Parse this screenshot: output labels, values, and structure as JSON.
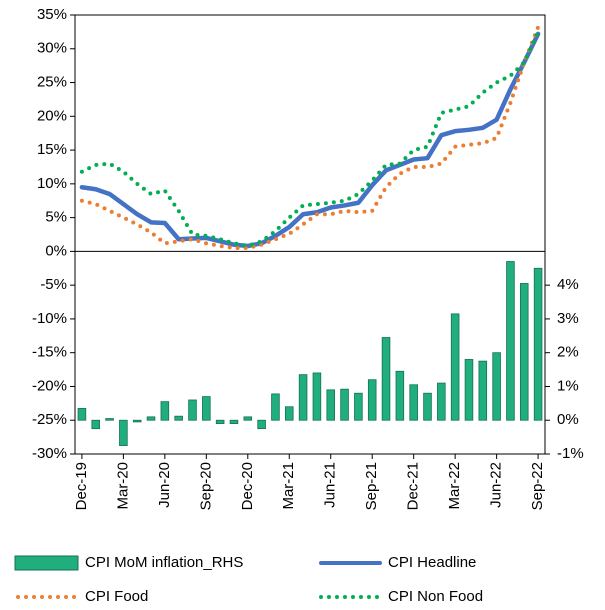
{
  "chart_data": {
    "type": "combo",
    "categories": [
      "Dec-19",
      null,
      null,
      "Mar-20",
      null,
      null,
      "Jun-20",
      null,
      null,
      "Sep-20",
      null,
      null,
      "Dec-20",
      null,
      null,
      "Mar-21",
      null,
      null,
      "Jun-21",
      null,
      null,
      "Sep-21",
      null,
      null,
      "Dec-21",
      null,
      null,
      "Mar-22",
      null,
      null,
      "Jun-22",
      null,
      null,
      "Sep-22"
    ],
    "ylim": [
      -30,
      35
    ],
    "yticks": [
      {
        "value": 35,
        "label": "35%"
      },
      {
        "value": 30,
        "label": "30%"
      },
      {
        "value": 25,
        "label": "25%"
      },
      {
        "value": 20,
        "label": "20%"
      },
      {
        "value": 15,
        "label": "15%"
      },
      {
        "value": 10,
        "label": "10%"
      },
      {
        "value": 5,
        "label": "5%"
      },
      {
        "value": 0,
        "label": "0%"
      },
      {
        "value": -5,
        "label": "-5%"
      },
      {
        "value": -10,
        "label": "-10%"
      },
      {
        "value": -15,
        "label": "-15%"
      },
      {
        "value": -20,
        "label": "-20%"
      },
      {
        "value": -25,
        "label": "-25%"
      },
      {
        "value": -30,
        "label": "-30%"
      }
    ],
    "y2lim": [
      -1,
      12
    ],
    "y2ticks": [
      {
        "value": 4,
        "label": "4%"
      },
      {
        "value": 3,
        "label": "3%"
      },
      {
        "value": 2,
        "label": "2%"
      },
      {
        "value": 1,
        "label": "1%"
      },
      {
        "value": 0,
        "label": "0%"
      },
      {
        "value": -1,
        "label": "-1%"
      }
    ],
    "grid": false,
    "series": [
      {
        "name": "CPI MoM inflation_RHS",
        "type": "bar",
        "axis": "y2",
        "color": "#1fae7c",
        "values": [
          0.35,
          -0.25,
          0.05,
          -0.75,
          -0.05,
          0.1,
          0.55,
          0.12,
          0.6,
          0.7,
          -0.1,
          -0.1,
          0.1,
          -0.25,
          0.78,
          0.4,
          1.35,
          1.4,
          0.9,
          0.92,
          0.8,
          1.2,
          2.45,
          1.45,
          1.05,
          0.8,
          1.1,
          3.15,
          1.8,
          1.75,
          2.0,
          4.7,
          4.05,
          4.5
        ]
      },
      {
        "name": "CPI Headline",
        "type": "line",
        "style": "solid",
        "color": "#4472c4",
        "values": [
          9.5,
          9.2,
          8.5,
          7.0,
          5.5,
          4.3,
          4.2,
          1.8,
          1.9,
          2.0,
          1.5,
          1.0,
          0.8,
          1.2,
          2.3,
          3.6,
          5.5,
          5.8,
          6.5,
          6.8,
          7.2,
          9.8,
          12.0,
          12.8,
          13.6,
          13.8,
          17.2,
          17.8,
          18.0,
          18.3,
          19.5,
          24.0,
          28.0,
          32.2
        ]
      },
      {
        "name": "CPI Food",
        "type": "line",
        "style": "dotted",
        "color": "#ed7d31",
        "values": [
          7.5,
          7.0,
          6.0,
          5.0,
          4.0,
          2.8,
          1.2,
          1.5,
          1.8,
          1.2,
          0.8,
          0.5,
          0.5,
          1.0,
          1.8,
          2.6,
          4.0,
          5.5,
          5.5,
          6.0,
          5.8,
          6.0,
          9.5,
          11.5,
          12.5,
          12.5,
          13.0,
          15.5,
          15.8,
          16.0,
          16.8,
          22.0,
          28.0,
          33.2
        ]
      },
      {
        "name": "CPI Non Food",
        "type": "line",
        "style": "dotted",
        "color": "#00b050",
        "values": [
          11.8,
          12.8,
          13.0,
          11.8,
          10.0,
          8.5,
          9.0,
          6.0,
          2.5,
          2.3,
          1.8,
          1.2,
          0.8,
          1.5,
          3.0,
          5.0,
          6.8,
          7.0,
          7.2,
          7.5,
          8.5,
          10.5,
          12.8,
          13.0,
          15.0,
          15.5,
          20.5,
          21.0,
          21.5,
          23.5,
          25.0,
          26.0,
          28.0,
          32.5
        ]
      }
    ]
  }
}
